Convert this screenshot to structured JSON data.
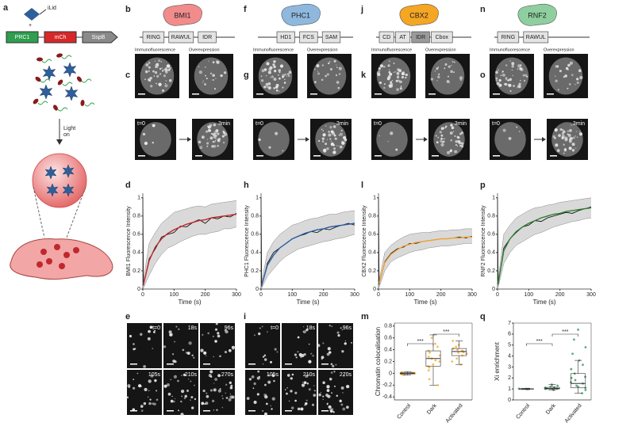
{
  "panel_labels": [
    "a",
    "b",
    "f",
    "j",
    "n",
    "c",
    "g",
    "k",
    "o",
    "d",
    "h",
    "l",
    "p",
    "e",
    "i",
    "m",
    "q"
  ],
  "schematic": {
    "ilid": "iLid",
    "plus": "+",
    "prc1": "PRC1",
    "mch": "mCh",
    "sspb": "SspB",
    "light": "Light",
    "on": "on"
  },
  "proteins": [
    {
      "name": "BMI1",
      "color": "#f28b8b",
      "domains": [
        "RING",
        "RAWUL",
        "IDR"
      ]
    },
    {
      "name": "PHC1",
      "color": "#8fb8de",
      "domains": [
        "HD1",
        "FCS",
        "SAM"
      ]
    },
    {
      "name": "CBX2",
      "color": "#f5a623",
      "domains": [
        "CD",
        "AT",
        "IDR",
        "Cbox"
      ]
    },
    {
      "name": "RNF2",
      "color": "#8fcf9f",
      "domains": [
        "RING",
        "RAWUL"
      ]
    }
  ],
  "image_labels": {
    "immuno": "Immunofluorescence",
    "over": "Overexpression",
    "t0": "t=0",
    "t3": "3min"
  },
  "timelapse": [
    "t=0",
    "18s",
    "96s",
    "105s",
    "210s",
    "270s"
  ],
  "chart_data": [
    {
      "type": "line",
      "y_label": "BMI1 Fluorescence Intensity",
      "x_label": "Time (s)",
      "x": [
        0,
        2,
        20,
        40,
        60,
        80,
        100,
        120,
        140,
        160,
        180,
        200,
        220,
        240,
        260,
        280,
        300
      ],
      "xlim": [
        0,
        300
      ],
      "xticks": [
        0,
        100,
        200,
        300
      ],
      "ylim": [
        0,
        1.05
      ],
      "yticks": [
        0,
        0.2,
        0.4,
        0.6,
        0.8,
        1
      ],
      "band": {
        "color": "#d9d9d9",
        "low": [
          null,
          0.01,
          0.15,
          0.28,
          0.38,
          0.45,
          0.48,
          0.52,
          0.55,
          0.58,
          0.6,
          0.6,
          0.62,
          0.63,
          0.66,
          0.66,
          0.68
        ],
        "high": [
          null,
          0.1,
          0.5,
          0.62,
          0.72,
          0.78,
          0.84,
          0.86,
          0.88,
          0.9,
          0.91,
          0.9,
          0.93,
          0.94,
          0.95,
          0.96,
          0.97
        ]
      },
      "series": [
        {
          "color": "#000000",
          "values": [
            1,
            0.04,
            0.33,
            0.44,
            0.57,
            0.6,
            0.62,
            0.69,
            0.68,
            0.73,
            0.76,
            0.72,
            0.78,
            0.77,
            0.8,
            0.79,
            0.83
          ]
        },
        {
          "color": "#c0282d",
          "values": [
            null,
            0.05,
            0.31,
            0.46,
            0.55,
            0.61,
            0.65,
            0.68,
            0.71,
            0.73,
            0.75,
            0.76,
            0.78,
            0.79,
            0.8,
            0.81,
            0.82
          ]
        }
      ]
    },
    {
      "type": "line",
      "y_label": "PHC1 Fluorescence Intensity",
      "x_label": "Time (s)",
      "x": [
        0,
        2,
        20,
        40,
        60,
        80,
        100,
        120,
        140,
        160,
        180,
        200,
        220,
        240,
        260,
        280,
        300
      ],
      "xlim": [
        0,
        300
      ],
      "xticks": [
        0,
        100,
        200,
        300
      ],
      "ylim": [
        0,
        1.05
      ],
      "yticks": [
        0,
        0.2,
        0.4,
        0.6,
        0.8,
        1
      ],
      "band": {
        "color": "#d9d9d9",
        "low": [
          null,
          0.01,
          0.14,
          0.22,
          0.3,
          0.36,
          0.4,
          0.44,
          0.46,
          0.48,
          0.5,
          0.52,
          0.53,
          0.55,
          0.56,
          0.58,
          0.6
        ],
        "high": [
          null,
          0.08,
          0.4,
          0.52,
          0.6,
          0.65,
          0.7,
          0.72,
          0.75,
          0.77,
          0.78,
          0.8,
          0.82,
          0.82,
          0.84,
          0.85,
          0.86
        ]
      },
      "series": [
        {
          "color": "#000000",
          "values": [
            1,
            0.03,
            0.28,
            0.4,
            0.45,
            0.5,
            0.55,
            0.58,
            0.6,
            0.63,
            0.62,
            0.66,
            0.65,
            0.68,
            0.7,
            0.72,
            0.7
          ]
        },
        {
          "color": "#2c5d9e",
          "values": [
            null,
            0.04,
            0.26,
            0.37,
            0.45,
            0.5,
            0.55,
            0.58,
            0.61,
            0.63,
            0.65,
            0.66,
            0.68,
            0.69,
            0.7,
            0.71,
            0.72
          ]
        }
      ]
    },
    {
      "type": "line",
      "y_label": "CBX2 Fluorescence Intensity",
      "x_label": "Time (s)",
      "x": [
        0,
        2,
        20,
        40,
        60,
        80,
        100,
        120,
        140,
        160,
        180,
        200,
        220,
        240,
        260,
        280,
        300
      ],
      "xlim": [
        0,
        300
      ],
      "xticks": [
        0,
        100,
        200,
        300
      ],
      "ylim": [
        0,
        1.05
      ],
      "yticks": [
        0,
        0.2,
        0.4,
        0.6,
        0.8,
        1
      ],
      "band": {
        "color": "#d9d9d9",
        "low": [
          null,
          0.02,
          0.2,
          0.3,
          0.34,
          0.37,
          0.4,
          0.42,
          0.43,
          0.45,
          0.46,
          0.47,
          0.47,
          0.48,
          0.49,
          0.5,
          0.5
        ],
        "high": [
          null,
          0.1,
          0.4,
          0.48,
          0.53,
          0.57,
          0.6,
          0.61,
          0.62,
          0.62,
          0.63,
          0.64,
          0.64,
          0.65,
          0.65,
          0.66,
          0.66
        ]
      },
      "series": [
        {
          "color": "#000000",
          "values": [
            1,
            0.05,
            0.3,
            0.39,
            0.44,
            0.46,
            0.5,
            0.5,
            0.52,
            0.53,
            0.54,
            0.55,
            0.55,
            0.56,
            0.57,
            0.56,
            0.58
          ]
        },
        {
          "color": "#f0a030",
          "values": [
            null,
            0.06,
            0.29,
            0.38,
            0.43,
            0.47,
            0.49,
            0.51,
            0.52,
            0.53,
            0.54,
            0.55,
            0.55,
            0.56,
            0.56,
            0.57,
            0.57
          ]
        }
      ]
    },
    {
      "type": "line",
      "y_label": "RNF2 Fluorescence Intensity",
      "x_label": "Time (s)",
      "x": [
        0,
        2,
        20,
        40,
        60,
        80,
        100,
        120,
        140,
        160,
        180,
        200,
        220,
        240,
        260,
        280,
        300
      ],
      "xlim": [
        0,
        300
      ],
      "xticks": [
        0,
        100,
        200,
        300
      ],
      "ylim": [
        0,
        1.05
      ],
      "yticks": [
        0,
        0.2,
        0.4,
        0.6,
        0.8,
        1
      ],
      "band": {
        "color": "#d9d9d9",
        "low": [
          null,
          0.02,
          0.28,
          0.4,
          0.48,
          0.52,
          0.56,
          0.6,
          0.62,
          0.65,
          0.68,
          0.7,
          0.72,
          0.74,
          0.75,
          0.77,
          0.78
        ],
        "high": [
          null,
          0.1,
          0.6,
          0.7,
          0.78,
          0.82,
          0.86,
          0.89,
          0.9,
          0.92,
          0.93,
          0.95,
          0.96,
          0.97,
          0.98,
          0.99,
          1
        ]
      },
      "series": [
        {
          "color": "#000000",
          "values": [
            1,
            0.05,
            0.45,
            0.55,
            0.62,
            0.68,
            0.7,
            0.75,
            0.74,
            0.78,
            0.8,
            0.82,
            0.84,
            0.83,
            0.86,
            0.88,
            0.9
          ]
        },
        {
          "color": "#2e7d32",
          "values": [
            null,
            0.06,
            0.42,
            0.55,
            0.63,
            0.68,
            0.72,
            0.75,
            0.78,
            0.8,
            0.82,
            0.83,
            0.85,
            0.86,
            0.87,
            0.88,
            0.89
          ]
        }
      ]
    },
    {
      "type": "box",
      "y_label": "Chromatin colocalisation",
      "categories": [
        "Control",
        "Dark",
        "Activated"
      ],
      "color": "#f5a623",
      "ylim": [
        -0.45,
        0.85
      ],
      "yticks": [
        -0.4,
        -0.2,
        0,
        0.2,
        0.4,
        0.6,
        0.8
      ],
      "significance": [
        "***",
        "***"
      ],
      "boxes": [
        {
          "low": -0.03,
          "q1": -0.01,
          "median": 0,
          "q3": 0.01,
          "high": 0.03,
          "points": [
            -0.02,
            0,
            0.01,
            -0.01,
            0.02,
            0,
            -0.03,
            0.01
          ]
        },
        {
          "low": -0.2,
          "q1": 0.12,
          "median": 0.25,
          "q3": 0.38,
          "high": 0.65,
          "points": [
            0.6,
            0.45,
            0.38,
            0.3,
            0.25,
            0.2,
            0.15,
            0.1,
            0.05,
            -0.1,
            -0.2,
            0.35,
            0.28,
            0.5,
            0.22,
            0.12
          ]
        },
        {
          "low": 0.15,
          "q1": 0.3,
          "median": 0.37,
          "q3": 0.42,
          "high": 0.55,
          "points": [
            0.55,
            0.48,
            0.42,
            0.4,
            0.38,
            0.36,
            0.35,
            0.33,
            0.3,
            0.25,
            0.2,
            0.15,
            0.45,
            0.37
          ]
        }
      ]
    },
    {
      "type": "box",
      "y_label": "Xi enrichment",
      "categories": [
        "Control",
        "Dark",
        "Activated"
      ],
      "color": "#2e8b57",
      "ylim": [
        0,
        7
      ],
      "yticks": [
        0,
        1,
        2,
        3,
        4,
        5,
        6,
        7
      ],
      "significance": [
        "***",
        "***"
      ],
      "boxes": [
        {
          "low": 0.95,
          "q1": 0.98,
          "median": 1,
          "q3": 1.02,
          "high": 1.05,
          "points": [
            1,
            1,
            1.02,
            0.98,
            1.01,
            0.99,
            1,
            1
          ]
        },
        {
          "low": 0.9,
          "q1": 1,
          "median": 1.05,
          "q3": 1.15,
          "high": 1.4,
          "points": [
            0.9,
            1,
            1.05,
            1.1,
            1.2,
            1.3,
            1.4,
            1.02,
            1.08,
            1.15
          ]
        },
        {
          "low": 0.6,
          "q1": 1.1,
          "median": 1.5,
          "q3": 2.4,
          "high": 3.6,
          "points": [
            0.6,
            0.9,
            1.1,
            1.3,
            1.5,
            1.8,
            2.1,
            2.4,
            2.8,
            3.2,
            3.6,
            4.2,
            4.8,
            5.5,
            6.4,
            1.2,
            1.6,
            2
          ]
        }
      ]
    }
  ]
}
